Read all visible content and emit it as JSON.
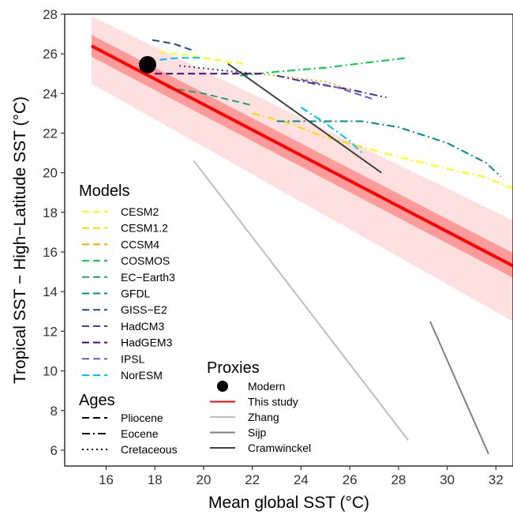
{
  "chart_data": {
    "type": "line",
    "xlabel": "Mean global SST (°C)",
    "ylabel": "Tropical SST − High−Latitude SST (°C)",
    "xlim": [
      14.3,
      32.7
    ],
    "ylim": [
      5.2,
      28
    ],
    "x_ticks": [
      16,
      18,
      20,
      22,
      24,
      26,
      28,
      30,
      32
    ],
    "y_ticks": [
      6,
      8,
      10,
      12,
      14,
      16,
      18,
      20,
      22,
      24,
      26,
      28
    ],
    "grid": false,
    "regression": {
      "name": "This study",
      "color": "#ff0000",
      "x": [
        15.4,
        32.7
      ],
      "y": [
        26.4,
        15.3
      ],
      "band_inner": {
        "upper": [
          26.95,
          15.95
        ],
        "lower": [
          25.85,
          14.7
        ],
        "color": "#ff9b9b"
      },
      "band_outer": {
        "upper": [
          27.9,
          17.6
        ],
        "lower": [
          24.5,
          12.5
        ],
        "color": "#ffe0e0"
      }
    },
    "modern_point": {
      "name": "Modern",
      "x": 17.7,
      "y": 25.45
    },
    "proxies": [
      {
        "name": "Zhang",
        "color": "#bdbdbd",
        "x": [
          19.6,
          28.4
        ],
        "y": [
          20.6,
          6.5
        ]
      },
      {
        "name": "Sijp",
        "color": "#808080",
        "x": [
          29.3,
          31.7
        ],
        "y": [
          12.5,
          5.8
        ]
      },
      {
        "name": "Cramwinckel",
        "color": "#404040",
        "x": [
          21.0,
          27.3
        ],
        "y": [
          25.5,
          20.0
        ]
      }
    ],
    "models": [
      {
        "name": "CESM2",
        "color": "#ffff00",
        "age": "Pliocene",
        "x": [
          18.2,
          19.5,
          21.0,
          21.7
        ],
        "y": [
          26.1,
          25.9,
          25.6,
          25.5
        ]
      },
      {
        "name": "CESM2",
        "color": "#ffff00",
        "age": "Eocene",
        "x": [
          26.2,
          28.0,
          30.0,
          31.5,
          32.7
        ],
        "y": [
          21.4,
          20.8,
          20.2,
          19.8,
          19.2
        ]
      },
      {
        "name": "CESM1.2",
        "color": "#ffd700",
        "age": "Eocene",
        "x": [
          22.0,
          23.5,
          25.0,
          26.5
        ],
        "y": [
          23.0,
          22.5,
          21.8,
          21.3
        ]
      },
      {
        "name": "CCSM4",
        "color": "#ffa500",
        "age": "Cretaceous",
        "x": [
          21.5,
          23.0,
          25.0,
          26.0
        ],
        "y": [
          25.1,
          24.9,
          24.6,
          24.2
        ]
      },
      {
        "name": "COSMOS",
        "color": "#00cc44",
        "age": "Eocene",
        "x": [
          21.5,
          23.0,
          25.0,
          27.0,
          28.4
        ],
        "y": [
          24.9,
          25.1,
          25.3,
          25.6,
          25.8
        ]
      },
      {
        "name": "EC−Earth3",
        "color": "#20a070",
        "age": "Pliocene",
        "x": [
          18.5,
          20.0,
          21.0,
          22.0
        ],
        "y": [
          24.3,
          24.0,
          23.7,
          23.4
        ]
      },
      {
        "name": "GFDL",
        "color": "#008b8b",
        "age": "Eocene",
        "x": [
          23.0,
          25.0,
          26.5,
          28.0,
          30.0,
          31.6,
          32.2
        ],
        "y": [
          22.6,
          22.6,
          22.6,
          22.3,
          21.5,
          20.5,
          19.8
        ]
      },
      {
        "name": "GISS−E2",
        "color": "#1f4e79",
        "age": "Pliocene",
        "x": [
          17.9,
          18.8,
          19.5
        ],
        "y": [
          26.7,
          26.5,
          26.2
        ]
      },
      {
        "name": "HadCM3",
        "color": "#3a3a8c",
        "age": "Eocene",
        "x": [
          23.0,
          24.5,
          26.0,
          27.5
        ],
        "y": [
          24.9,
          24.5,
          24.2,
          23.8
        ]
      },
      {
        "name": "HadCM3",
        "color": "#3a3a8c",
        "age": "Cretaceous",
        "x": [
          19.0,
          20.5,
          22.0
        ],
        "y": [
          25.4,
          25.2,
          25.0
        ]
      },
      {
        "name": "HadGEM3",
        "color": "#4b0082",
        "age": "Pliocene",
        "x": [
          18.0,
          19.5,
          21.0,
          22.5
        ],
        "y": [
          25.0,
          25.0,
          25.0,
          25.0
        ]
      },
      {
        "name": "IPSL",
        "color": "#6a5acd",
        "age": "Pliocene",
        "x": [
          24.0,
          25.5,
          27.0
        ],
        "y": [
          24.7,
          24.3,
          23.7
        ]
      },
      {
        "name": "NorESM",
        "color": "#00bfff",
        "age": "Pliocene",
        "x": [
          18.2,
          19.0,
          20.0
        ],
        "y": [
          25.7,
          25.8,
          25.8
        ]
      },
      {
        "name": "NorESM",
        "color": "#00bfff",
        "age": "Eocene",
        "x": [
          24.0,
          25.0,
          26.0,
          26.5
        ],
        "y": [
          23.3,
          22.5,
          21.6,
          21.0
        ]
      }
    ]
  },
  "legends": {
    "models": {
      "title": "Models",
      "items": [
        {
          "label": "CESM2",
          "color": "#ffff00"
        },
        {
          "label": "CESM1.2",
          "color": "#ffd700"
        },
        {
          "label": "CCSM4",
          "color": "#ffa500"
        },
        {
          "label": "COSMOS",
          "color": "#00cc44"
        },
        {
          "label": "EC−Earth3",
          "color": "#20a070"
        },
        {
          "label": "GFDL",
          "color": "#008b8b"
        },
        {
          "label": "GISS−E2",
          "color": "#1f4e79"
        },
        {
          "label": "HadCM3",
          "color": "#3a3a8c"
        },
        {
          "label": "HadGEM3",
          "color": "#4b0082"
        },
        {
          "label": "IPSL",
          "color": "#6a5acd"
        },
        {
          "label": "NorESM",
          "color": "#00bfff"
        }
      ]
    },
    "ages": {
      "title": "Ages",
      "items": [
        {
          "label": "Pliocene",
          "style": "dashed"
        },
        {
          "label": "Eocene",
          "style": "dashdot"
        },
        {
          "label": "Cretaceous",
          "style": "dotted"
        }
      ]
    },
    "proxies": {
      "title": "Proxies",
      "items": [
        {
          "label": "Modern",
          "kind": "point",
          "color": "#000000"
        },
        {
          "label": "This study",
          "kind": "line",
          "color": "#ff0000"
        },
        {
          "label": "Zhang",
          "kind": "line",
          "color": "#bdbdbd"
        },
        {
          "label": "Sijp",
          "kind": "line",
          "color": "#808080"
        },
        {
          "label": "Cramwinckel",
          "kind": "line",
          "color": "#404040"
        }
      ]
    }
  }
}
